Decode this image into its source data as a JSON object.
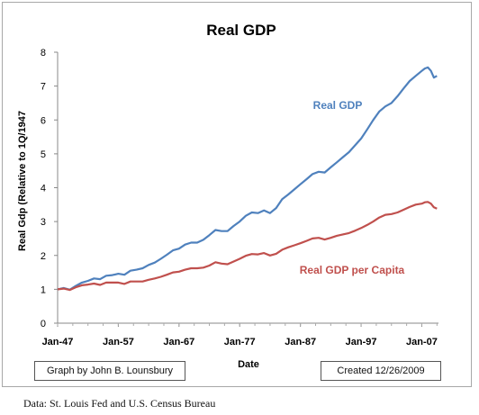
{
  "credit_left": "Graph by John B. Lounsbury",
  "credit_right": "Created 12/26/2009",
  "footer": "Data:  St. Louis Fed and U.S. Census Bureau",
  "chart_data": {
    "type": "line",
    "title": "Real GDP",
    "xlabel": "Date",
    "ylabel": "Real Gdp (Relative to 1Q/1947",
    "xlim": [
      1947.0,
      2009.75
    ],
    "ylim": [
      0,
      8
    ],
    "grid": false,
    "x_ticks": [
      {
        "value": 1947,
        "label": "Jan-47"
      },
      {
        "value": 1957,
        "label": "Jan-57"
      },
      {
        "value": 1967,
        "label": "Jan-67"
      },
      {
        "value": 1977,
        "label": "Jan-77"
      },
      {
        "value": 1987,
        "label": "Jan-87"
      },
      {
        "value": 1997,
        "label": "Jan-97"
      },
      {
        "value": 2007,
        "label": "Jan-07"
      }
    ],
    "y_ticks": [
      0,
      1,
      2,
      3,
      4,
      5,
      6,
      7,
      8
    ],
    "series": [
      {
        "name": "Real GDP",
        "color": "#4f81bd",
        "x": [
          1947,
          1948,
          1949,
          1950,
          1951,
          1952,
          1953,
          1954,
          1955,
          1956,
          1957,
          1958,
          1959,
          1960,
          1961,
          1962,
          1963,
          1964,
          1965,
          1966,
          1967,
          1968,
          1969,
          1970,
          1971,
          1972,
          1973,
          1974,
          1975,
          1976,
          1977,
          1978,
          1979,
          1980,
          1981,
          1982,
          1983,
          1984,
          1985,
          1986,
          1987,
          1988,
          1989,
          1990,
          1991,
          1992,
          1993,
          1994,
          1995,
          1996,
          1997,
          1998,
          1999,
          2000,
          2001,
          2002,
          2003,
          2004,
          2005,
          2006,
          2007,
          2007.5,
          2008,
          2008.5,
          2009,
          2009.5
        ],
        "values": [
          1.0,
          1.04,
          0.99,
          1.1,
          1.2,
          1.25,
          1.32,
          1.3,
          1.4,
          1.42,
          1.46,
          1.43,
          1.55,
          1.58,
          1.62,
          1.72,
          1.79,
          1.9,
          2.02,
          2.15,
          2.2,
          2.32,
          2.38,
          2.38,
          2.46,
          2.6,
          2.75,
          2.72,
          2.72,
          2.87,
          3.0,
          3.17,
          3.27,
          3.25,
          3.33,
          3.25,
          3.4,
          3.66,
          3.8,
          3.95,
          4.1,
          4.25,
          4.4,
          4.47,
          4.45,
          4.6,
          4.75,
          4.9,
          5.05,
          5.25,
          5.45,
          5.72,
          6.0,
          6.25,
          6.4,
          6.5,
          6.7,
          6.93,
          7.15,
          7.3,
          7.45,
          7.52,
          7.55,
          7.45,
          7.25,
          7.3
        ]
      },
      {
        "name": "Real GDP per Capita",
        "color": "#c0504d",
        "x": [
          1947,
          1948,
          1949,
          1950,
          1951,
          1952,
          1953,
          1954,
          1955,
          1956,
          1957,
          1958,
          1959,
          1960,
          1961,
          1962,
          1963,
          1964,
          1965,
          1966,
          1967,
          1968,
          1969,
          1970,
          1971,
          1972,
          1973,
          1974,
          1975,
          1976,
          1977,
          1978,
          1979,
          1980,
          1981,
          1982,
          1983,
          1984,
          1985,
          1986,
          1987,
          1988,
          1989,
          1990,
          1991,
          1992,
          1993,
          1994,
          1995,
          1996,
          1997,
          1998,
          1999,
          2000,
          2001,
          2002,
          2003,
          2004,
          2005,
          2006,
          2007,
          2007.5,
          2008,
          2008.5,
          2009,
          2009.5
        ],
        "values": [
          1.0,
          1.02,
          0.98,
          1.06,
          1.12,
          1.14,
          1.17,
          1.13,
          1.2,
          1.2,
          1.2,
          1.16,
          1.23,
          1.23,
          1.23,
          1.28,
          1.32,
          1.37,
          1.43,
          1.5,
          1.52,
          1.58,
          1.62,
          1.62,
          1.64,
          1.7,
          1.8,
          1.76,
          1.74,
          1.82,
          1.9,
          1.99,
          2.04,
          2.03,
          2.07,
          2.0,
          2.05,
          2.17,
          2.24,
          2.3,
          2.36,
          2.43,
          2.5,
          2.52,
          2.47,
          2.52,
          2.58,
          2.62,
          2.66,
          2.73,
          2.81,
          2.9,
          3.0,
          3.12,
          3.2,
          3.22,
          3.27,
          3.35,
          3.43,
          3.5,
          3.53,
          3.57,
          3.58,
          3.53,
          3.42,
          3.38
        ]
      }
    ]
  }
}
